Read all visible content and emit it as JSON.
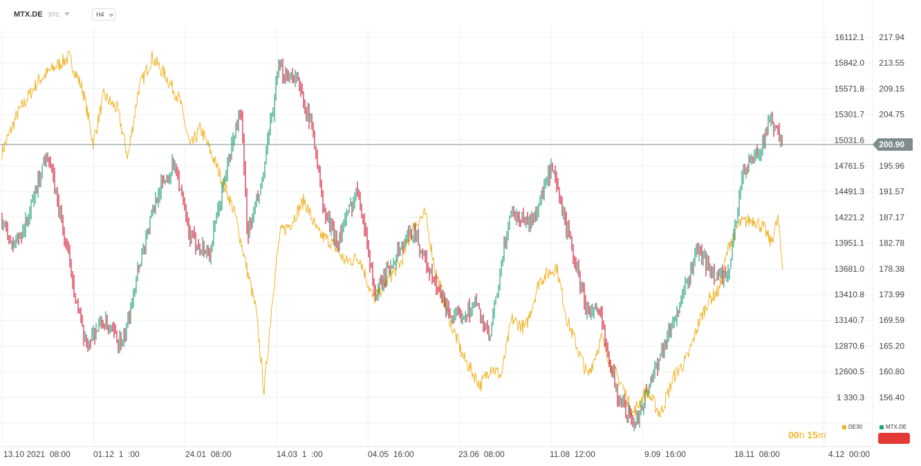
{
  "toolbar": {
    "symbol": "MTX.DE",
    "symbol_type": "STC",
    "timeframe": "H4"
  },
  "countdown": {
    "hours": "00",
    "h_unit": "h",
    "minutes": "15",
    "m_unit": "m"
  },
  "legend": [
    {
      "label": "DE30",
      "color": "#f0b429"
    },
    {
      "label": "MTX.DE",
      "color": "#26a17b"
    }
  ],
  "colors": {
    "up": "#26a17b",
    "down": "#d61f3a",
    "overlay": "#f0b429",
    "price_line": "#7f8c8d",
    "badge": "#7f8c8d"
  },
  "chart_data": {
    "type": "candlestick",
    "series": [
      {
        "name": "MTX.DE",
        "kind": "candlestick",
        "axis": "right"
      },
      {
        "name": "DE30",
        "kind": "line",
        "axis": "left"
      }
    ],
    "x_labels": [
      "13.10 2021  08:00",
      "01.12  1  :00",
      "24.01  08:00",
      "14.03  1  :00",
      "04.05  16:00",
      "23.06  08:00",
      "11.08  12:00",
      "9.09  16:00",
      "18.11  08:00",
      "4.12  00:00"
    ],
    "de30_axis_ticks": [
      "16112.1",
      "15842.0",
      "15571.8",
      "15301.7",
      "15031.6",
      "14761.5",
      "14491.3",
      "14221.2",
      "13951.1",
      "13681.0",
      "13410.8",
      "13140.7",
      "12870.6",
      "12600.5",
      "1  330.3"
    ],
    "mtx_axis_ticks": [
      "217.94",
      "213.55",
      "209.15",
      "204.75",
      "195.96",
      "191.57",
      "187.17",
      "182.78",
      "178.38",
      "173.99",
      "169.59",
      "165.20",
      "160.80",
      "156.40"
    ],
    "current_price": "200.90",
    "mtx_ylim": [
      151.5,
      220.0
    ],
    "mtx_anchors": [
      [
        0,
        190.0
      ],
      [
        20,
        184.0
      ],
      [
        40,
        188.0
      ],
      [
        70,
        200.0
      ],
      [
        100,
        183.0
      ],
      [
        125,
        168.0
      ],
      [
        150,
        172.0
      ],
      [
        180,
        168.0
      ],
      [
        200,
        180.0
      ],
      [
        230,
        193.0
      ],
      [
        255,
        198.0
      ],
      [
        275,
        186.0
      ],
      [
        305,
        183.0
      ],
      [
        330,
        197.0
      ],
      [
        350,
        207.0
      ],
      [
        360,
        186.0
      ],
      [
        380,
        194.0
      ],
      [
        405,
        213.0
      ],
      [
        430,
        212.0
      ],
      [
        455,
        203.0
      ],
      [
        470,
        190.0
      ],
      [
        490,
        185.0
      ],
      [
        520,
        194.0
      ],
      [
        545,
        176.0
      ],
      [
        575,
        183.0
      ],
      [
        600,
        187.0
      ],
      [
        630,
        178.0
      ],
      [
        660,
        172.0
      ],
      [
        690,
        175.0
      ],
      [
        710,
        169.0
      ],
      [
        740,
        190.0
      ],
      [
        770,
        188.0
      ],
      [
        800,
        197.0
      ],
      [
        820,
        188.0
      ],
      [
        850,
        174.0
      ],
      [
        870,
        173.0
      ],
      [
        895,
        160.0
      ],
      [
        920,
        155.0
      ],
      [
        945,
        163.0
      ],
      [
        965,
        169.0
      ],
      [
        990,
        176.0
      ],
      [
        1010,
        184.0
      ],
      [
        1030,
        180.0
      ],
      [
        1055,
        179.0
      ],
      [
        1075,
        196.0
      ],
      [
        1100,
        200.0
      ],
      [
        1118,
        205.0
      ],
      [
        1132,
        200.9
      ]
    ],
    "de30_ylim": [
      12060.0,
      16460.0
    ],
    "de30_anchors": [
      [
        0,
        15100
      ],
      [
        25,
        15550
      ],
      [
        55,
        15900
      ],
      [
        80,
        16050
      ],
      [
        100,
        16150
      ],
      [
        120,
        15800
      ],
      [
        135,
        15250
      ],
      [
        150,
        15750
      ],
      [
        170,
        15600
      ],
      [
        185,
        15100
      ],
      [
        200,
        15800
      ],
      [
        220,
        16150
      ],
      [
        240,
        15950
      ],
      [
        260,
        15700
      ],
      [
        275,
        15200
      ],
      [
        290,
        15400
      ],
      [
        305,
        15150
      ],
      [
        325,
        14800
      ],
      [
        340,
        14500
      ],
      [
        355,
        14000
      ],
      [
        370,
        13500
      ],
      [
        382,
        12640
      ],
      [
        395,
        13700
      ],
      [
        405,
        14300
      ],
      [
        420,
        14400
      ],
      [
        440,
        14650
      ],
      [
        460,
        14300
      ],
      [
        480,
        14200
      ],
      [
        500,
        14000
      ],
      [
        520,
        14050
      ],
      [
        540,
        13600
      ],
      [
        560,
        13800
      ],
      [
        580,
        14000
      ],
      [
        600,
        14400
      ],
      [
        615,
        14500
      ],
      [
        630,
        13900
      ],
      [
        650,
        13400
      ],
      [
        670,
        13000
      ],
      [
        695,
        12700
      ],
      [
        710,
        12900
      ],
      [
        725,
        12800
      ],
      [
        740,
        13400
      ],
      [
        760,
        13300
      ],
      [
        780,
        13800
      ],
      [
        805,
        13950
      ],
      [
        820,
        13400
      ],
      [
        835,
        13100
      ],
      [
        850,
        12800
      ],
      [
        870,
        13200
      ],
      [
        885,
        12900
      ],
      [
        900,
        12700
      ],
      [
        915,
        12400
      ],
      [
        935,
        12650
      ],
      [
        955,
        12400
      ],
      [
        975,
        12800
      ],
      [
        995,
        13000
      ],
      [
        1010,
        13350
      ],
      [
        1025,
        13600
      ],
      [
        1040,
        13700
      ],
      [
        1055,
        14200
      ],
      [
        1070,
        14400
      ],
      [
        1090,
        14450
      ],
      [
        1105,
        14350
      ],
      [
        1115,
        14200
      ],
      [
        1125,
        14450
      ],
      [
        1132,
        13950
      ]
    ]
  }
}
